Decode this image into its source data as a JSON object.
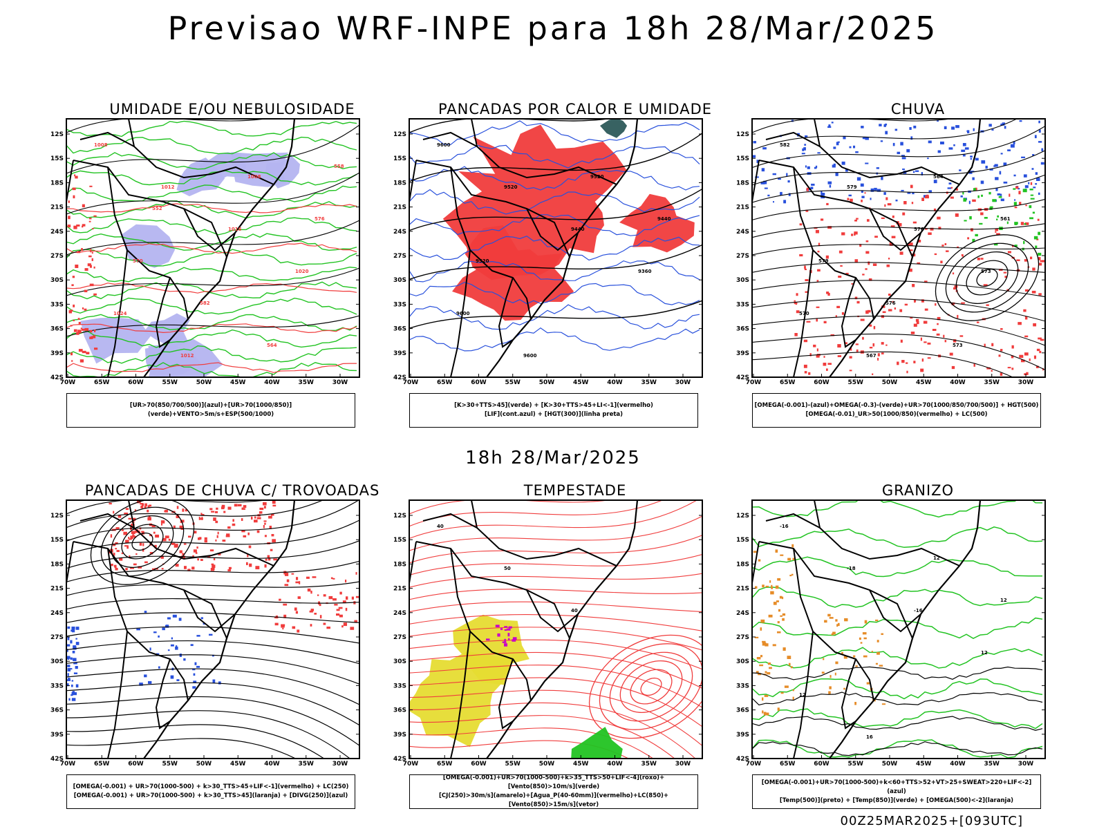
{
  "main_title": "Previsao WRF-INPE  para 18h 28/Mar/2025",
  "mid_title": "18h 28/Mar/2025",
  "footer": "00Z25MAR2025+[093UTC]",
  "axis": {
    "lat_labels": [
      "12S",
      "15S",
      "18S",
      "21S",
      "24S",
      "27S",
      "30S",
      "33S",
      "36S",
      "39S",
      "42S"
    ],
    "lon_labels": [
      "70W",
      "65W",
      "60W",
      "55W",
      "50W",
      "45W",
      "40W",
      "35W",
      "30W"
    ]
  },
  "colors": {
    "green": "#22c322",
    "red": "#f03c3c",
    "blue": "#2850dc",
    "lavender": "#b4b4f0",
    "yellow": "#e6dc32",
    "purple": "#c800c8",
    "orange": "#e68c28",
    "teal": "#2d5a5a",
    "black": "#000000"
  },
  "panels": [
    {
      "title": "UMIDADE E/OU NEBULOSIDADE",
      "legend": [
        "[UR>70(850/700/500)](azul)+[UR>70(1000/850)](verde)+VENTO>5m/s+ESP(500/1000)"
      ],
      "contour_labels": [
        "1008",
        "1012",
        "1016",
        "1020",
        "1024",
        "1012",
        "1008",
        "576",
        "570",
        "582",
        "564",
        "558",
        "552"
      ]
    },
    {
      "title": "PANCADAS POR CALOR E UMIDADE",
      "legend": [
        "[K>30+TTS>45](verde) + [K>30+TTS>45+LI<-1](vermelho)",
        "[LIF](cont.azul) + [HGT(300)](linha preta)"
      ],
      "contour_labels": [
        "9600",
        "9520",
        "9440",
        "9360",
        "9600",
        "9600",
        "9520",
        "9440",
        "9520"
      ]
    },
    {
      "title": "CHUVA",
      "legend": [
        "[OMEGA(-0.001)-(azul)+OMEGA(-0.3)-(verde)+UR>70(1000/850/700/500)] + HGT(500)",
        "[OMEGA(-0.01)_UR>50(1000/850)(vermelho) + LC(500)"
      ],
      "contour_labels": [
        "582",
        "579",
        "576",
        "573",
        "570",
        "567",
        "564",
        "561",
        "579",
        "576",
        "573"
      ]
    },
    {
      "title": "PANCADAS DE CHUVA C/ TROVOADAS",
      "legend": [
        "[OMEGA(-0.001) + UR>70(1000-500) + k>30_TTS>45+LIF<-1](vermelho) + LC(250)",
        "[OMEGA(-0.001) + UR>70(1000-500) + k>30_TTS>45](laranja) + [DIVG(250)](azul)"
      ],
      "contour_labels": []
    },
    {
      "title": "TEMPESTADE",
      "legend": [
        "[OMEGA(-0.001)+UR>70(1000-500)+k>35_TTS>50+LIF<-4](roxo)+[Vento(850)>10m/s](verde)",
        "[CJ(250)>30m/s](amarelo)+[Agua_P(40-60mm)](vermelho)+LC(850)+[Vento(850)>15m/s](vetor)"
      ],
      "contour_labels": [
        "40",
        "50",
        "40"
      ]
    },
    {
      "title": "GRANIZO",
      "legend": [
        "[OMEGA(-0.001)+UR>70(1000-500)+k<60+TTS>52+VT>25+SWEAT>220+LIF<-2](azul)",
        "[Temp(500)](preto) + [Temp(850)](verde) + [OMEGA(500)<-2](laranja)"
      ],
      "contour_labels": [
        "-16",
        "-18",
        "-16",
        "12",
        "12",
        "16",
        "12",
        "12"
      ]
    }
  ]
}
